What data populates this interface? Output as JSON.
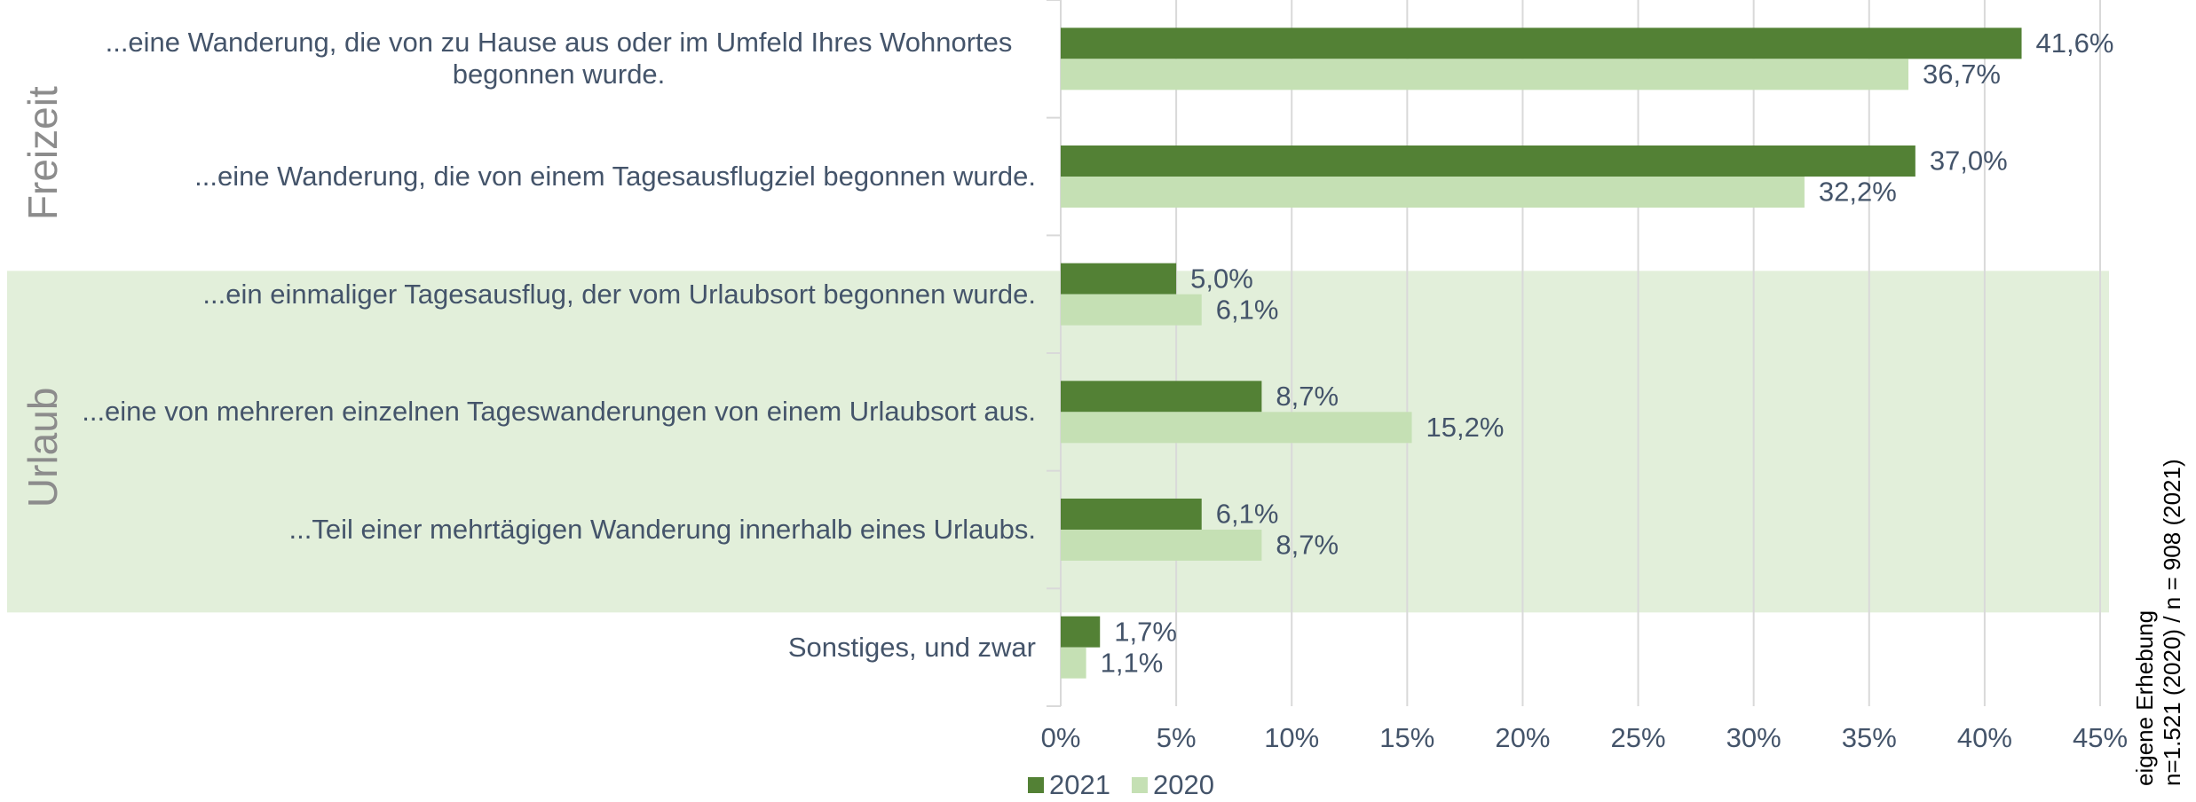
{
  "chart_data": {
    "type": "bar",
    "orientation": "horizontal",
    "categories": [
      "...eine Wanderung, die von zu Hause aus oder im Umfeld Ihres Wohnortes begonnen wurde.",
      "...eine Wanderung, die von einem Tagesausflugziel begonnen wurde.",
      "...ein einmaliger Tagesausflug, der vom Urlaubsort begonnen wurde.",
      "...eine von mehreren einzelnen Tageswanderungen von einem Urlaubsort aus.",
      "...Teil einer mehrtägigen Wanderung innerhalb eines Urlaubs.",
      "Sonstiges, und zwar"
    ],
    "groups": [
      {
        "name": "Freizeit",
        "size": 2,
        "shaded": false
      },
      {
        "name": "Urlaub",
        "size": 3,
        "shaded": true
      }
    ],
    "series": [
      {
        "name": "2021",
        "color": "#538135",
        "values": [
          41.6,
          37.0,
          5.0,
          8.7,
          6.1,
          1.7
        ],
        "value_labels": [
          "41,6%",
          "37,0%",
          "5,0%",
          "8,7%",
          "6,1%",
          "1,7%"
        ]
      },
      {
        "name": "2020",
        "color": "#c5e0b4",
        "values": [
          36.7,
          32.2,
          6.1,
          15.2,
          8.7,
          1.1
        ],
        "value_labels": [
          "36,7%",
          "32,2%",
          "6,1%",
          "15,2%",
          "8,7%",
          "1,1%"
        ]
      }
    ],
    "xlim": [
      0,
      45
    ],
    "xticks": [
      {
        "value": 0,
        "label": "0%"
      },
      {
        "value": 5,
        "label": "5%"
      },
      {
        "value": 10,
        "label": "10%"
      },
      {
        "value": 15,
        "label": "15%"
      },
      {
        "value": 20,
        "label": "20%"
      },
      {
        "value": 25,
        "label": "25%"
      },
      {
        "value": 30,
        "label": "30%"
      },
      {
        "value": 35,
        "label": "35%"
      },
      {
        "value": 40,
        "label": "40%"
      },
      {
        "value": 45,
        "label": "45%"
      }
    ],
    "grid": true,
    "legend": "bottom",
    "note": [
      "eigene Erhebung",
      "n=1.521 (2020) / n = 908 (2021)"
    ]
  }
}
